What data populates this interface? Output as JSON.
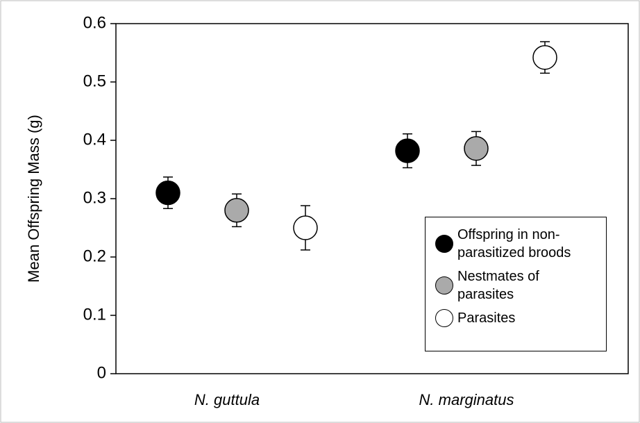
{
  "chart_data": {
    "type": "dot-errorbar",
    "ylabel": "Mean Offspring Mass (g)",
    "categories": [
      "N. guttula",
      "N. marginatus"
    ],
    "series": [
      {
        "name": "Offspring in non-parasitized broods",
        "color": "#000000",
        "values": [
          0.31,
          0.382
        ],
        "errors": [
          0.027,
          0.029
        ]
      },
      {
        "name": "Nestmates of parasites",
        "color": "#aaaaaa",
        "values": [
          0.28,
          0.386
        ],
        "errors": [
          0.028,
          0.029
        ]
      },
      {
        "name": "Parasites",
        "color": "#ffffff",
        "values": [
          0.25,
          0.542
        ],
        "errors": [
          0.038,
          0.027
        ]
      }
    ],
    "ylim": [
      0,
      0.6
    ],
    "yticks": [
      0,
      0.1,
      0.2,
      0.3,
      0.4,
      0.5,
      0.6
    ],
    "grid": false,
    "legend": "lower right"
  }
}
